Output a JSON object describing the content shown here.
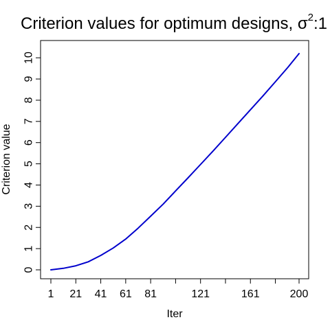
{
  "chart_data": {
    "type": "line",
    "title": {
      "main": "Criterion values for optimum designs, ",
      "symbol": "σ",
      "superscript": "2",
      "suffix": ":1"
    },
    "xlabel": "Iter",
    "ylabel": "Criterion value",
    "xlim": [
      1,
      200
    ],
    "ylim": [
      0,
      10.2
    ],
    "x_ticks": [
      1,
      21,
      41,
      61,
      81,
      101,
      121,
      141,
      161,
      181,
      200
    ],
    "x_tick_labels": [
      "1",
      "21",
      "41",
      "61",
      "81",
      "",
      "121",
      "",
      "161",
      "",
      "200"
    ],
    "y_ticks": [
      0,
      1,
      2,
      3,
      4,
      5,
      6,
      7,
      8,
      9,
      10
    ],
    "y_tick_labels": [
      "0",
      "1",
      "2",
      "3",
      "4",
      "5",
      "6",
      "7",
      "8",
      "9",
      "10"
    ],
    "grid": false,
    "series": [
      {
        "color": "#0000cc",
        "x": [
          1,
          11,
          21,
          31,
          41,
          51,
          61,
          71,
          81,
          91,
          101,
          111,
          121,
          131,
          141,
          151,
          161,
          171,
          181,
          191,
          200
        ],
        "y": [
          0.0,
          0.07,
          0.19,
          0.38,
          0.68,
          1.03,
          1.45,
          1.97,
          2.53,
          3.1,
          3.72,
          4.34,
          4.97,
          5.6,
          6.25,
          6.9,
          7.55,
          8.2,
          8.87,
          9.55,
          10.2
        ]
      }
    ]
  }
}
